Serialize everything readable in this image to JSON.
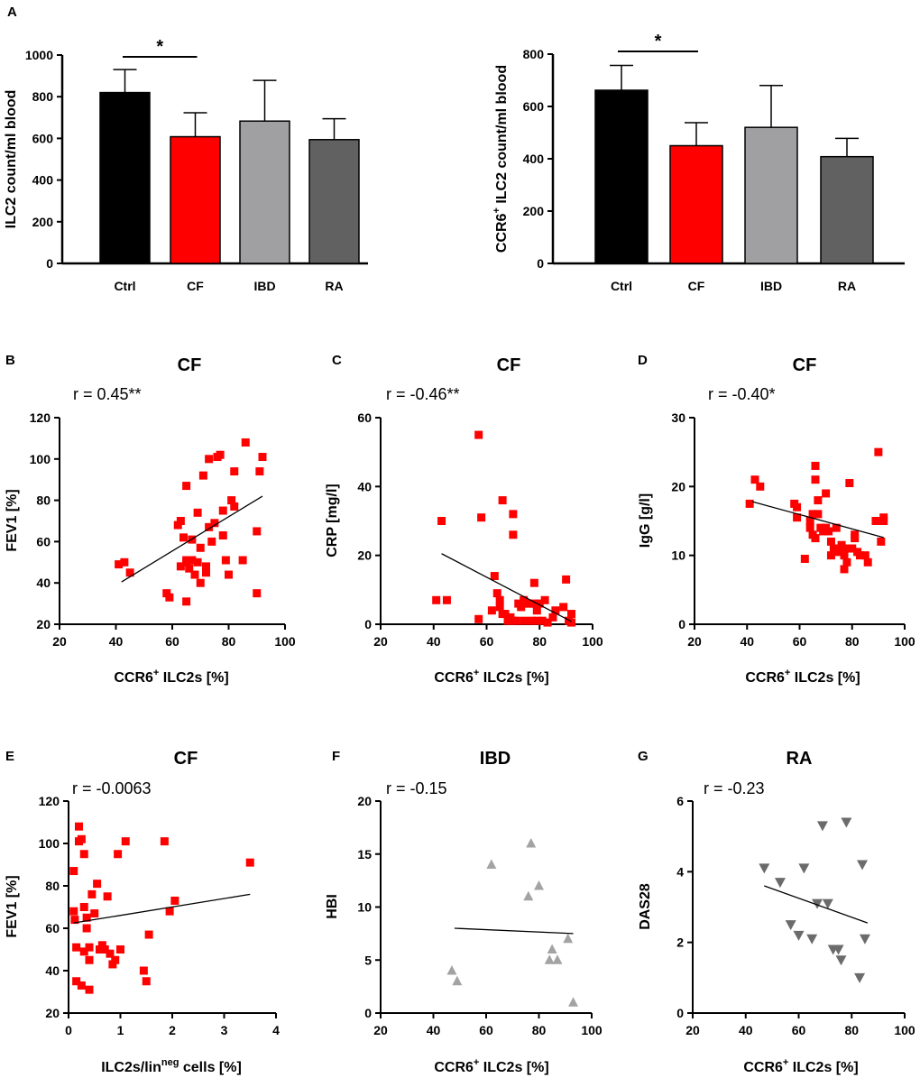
{
  "figure_label": "A",
  "colors": {
    "ctrl": "#000000",
    "cf": "#ff0000",
    "ibd": "#a0a0a3",
    "ra": "#616161",
    "cf_points": "#ff0000",
    "ibd_points": "#a3a3a3",
    "ra_points": "#6b6b6b"
  },
  "chart_data": [
    {
      "id": "A1",
      "type": "bar",
      "categories": [
        "Ctrl",
        "CF",
        "IBD",
        "RA"
      ],
      "values": [
        820,
        608,
        683,
        594
      ],
      "errors": [
        110,
        115,
        195,
        100
      ],
      "ylabel": "ILC2 count/ml blood",
      "ylim": [
        0,
        1000
      ],
      "yticks": [
        "0",
        "200",
        "400",
        "600",
        "800",
        "1000"
      ],
      "significance": {
        "from": "Ctrl",
        "to": "CF",
        "label": "*"
      }
    },
    {
      "id": "A2",
      "type": "bar",
      "categories": [
        "Ctrl",
        "CF",
        "IBD",
        "RA"
      ],
      "values": [
        662,
        450,
        520,
        408
      ],
      "errors": [
        95,
        88,
        160,
        70
      ],
      "ylabel_main": "CCR6",
      "ylabel_sup": "+",
      "ylabel_rest": " ILC2 count/ml blood",
      "ylim": [
        0,
        800
      ],
      "yticks": [
        "0",
        "200",
        "400",
        "600",
        "800"
      ],
      "significance": {
        "from": "Ctrl",
        "to": "CF",
        "label": "*"
      }
    },
    {
      "id": "B",
      "panel": "B",
      "type": "scatter",
      "title": "CF",
      "r_text": "r = 0.45**",
      "xlabel_main": "CCR6",
      "xlabel_sup": "+",
      "xlabel_rest": " ILC2s [%]",
      "ylabel": "FEV1 [%]",
      "xlim": [
        20,
        100
      ],
      "ylim": [
        20,
        120
      ],
      "xticks": [
        "20",
        "40",
        "60",
        "80",
        "100"
      ],
      "yticks": [
        "20",
        "40",
        "60",
        "80",
        "100",
        "120"
      ],
      "marker": "square",
      "fit": [
        [
          42,
          40.5
        ],
        [
          92,
          82
        ]
      ],
      "points": [
        [
          41,
          49
        ],
        [
          43,
          50
        ],
        [
          45,
          45
        ],
        [
          58,
          35
        ],
        [
          59,
          33
        ],
        [
          62,
          68
        ],
        [
          63,
          70
        ],
        [
          63,
          48
        ],
        [
          64,
          62
        ],
        [
          65,
          51
        ],
        [
          65,
          50
        ],
        [
          65,
          87
        ],
        [
          65,
          31
        ],
        [
          66,
          47
        ],
        [
          67,
          61
        ],
        [
          67,
          51
        ],
        [
          68,
          44
        ],
        [
          69,
          50
        ],
        [
          69,
          74
        ],
        [
          70,
          40
        ],
        [
          70,
          57
        ],
        [
          71,
          92
        ],
        [
          72,
          48
        ],
        [
          72,
          45
        ],
        [
          73,
          67
        ],
        [
          73,
          100
        ],
        [
          74,
          60
        ],
        [
          75,
          69
        ],
        [
          76,
          101
        ],
        [
          77,
          102
        ],
        [
          78,
          75
        ],
        [
          78,
          63
        ],
        [
          79,
          51
        ],
        [
          80,
          44
        ],
        [
          81,
          80
        ],
        [
          82,
          77
        ],
        [
          82,
          94
        ],
        [
          85,
          51
        ],
        [
          86,
          108
        ],
        [
          90,
          65
        ],
        [
          90,
          35
        ],
        [
          91,
          94
        ],
        [
          92,
          101
        ]
      ]
    },
    {
      "id": "C",
      "panel": "C",
      "type": "scatter",
      "title": "CF",
      "r_text": "r = -0.46**",
      "xlabel_main": "CCR6",
      "xlabel_sup": "+",
      "xlabel_rest": " ILC2s [%]",
      "ylabel": "CRP [mg/l]",
      "xlim": [
        20,
        100
      ],
      "ylim": [
        0,
        60
      ],
      "xticks": [
        "20",
        "40",
        "60",
        "80",
        "100"
      ],
      "yticks": [
        "0",
        "20",
        "40",
        "60"
      ],
      "marker": "square",
      "fit": [
        [
          43,
          20.5
        ],
        [
          92,
          0.8
        ]
      ],
      "points": [
        [
          41,
          7
        ],
        [
          43,
          30
        ],
        [
          45,
          7
        ],
        [
          57,
          1.5
        ],
        [
          57,
          55
        ],
        [
          58,
          31
        ],
        [
          62,
          4
        ],
        [
          63,
          14
        ],
        [
          64,
          9
        ],
        [
          65,
          7
        ],
        [
          65,
          5
        ],
        [
          66,
          36
        ],
        [
          66,
          3
        ],
        [
          67,
          3
        ],
        [
          68,
          1
        ],
        [
          69,
          2
        ],
        [
          70,
          26
        ],
        [
          70,
          32
        ],
        [
          70,
          1
        ],
        [
          71,
          1
        ],
        [
          72,
          6
        ],
        [
          73,
          5
        ],
        [
          74,
          7
        ],
        [
          74,
          1
        ],
        [
          75,
          6
        ],
        [
          76,
          6
        ],
        [
          77,
          1
        ],
        [
          78,
          12
        ],
        [
          78,
          6
        ],
        [
          79,
          1
        ],
        [
          79,
          4
        ],
        [
          80,
          6
        ],
        [
          81,
          1
        ],
        [
          82,
          7
        ],
        [
          83,
          0.5
        ],
        [
          85,
          2
        ],
        [
          86,
          4
        ],
        [
          89,
          5
        ],
        [
          90,
          13
        ],
        [
          91,
          1
        ],
        [
          92,
          3
        ],
        [
          92,
          0.5
        ]
      ]
    },
    {
      "id": "D",
      "panel": "D",
      "type": "scatter",
      "title": "CF",
      "r_text": "r = -0.40*",
      "xlabel_main": "CCR6",
      "xlabel_sup": "+",
      "xlabel_rest": " ILC2s [%]",
      "ylabel": "IgG [g/l]",
      "xlim": [
        20,
        100
      ],
      "ylim": [
        0,
        30
      ],
      "xticks": [
        "20",
        "40",
        "60",
        "80",
        "100"
      ],
      "yticks": [
        "0",
        "10",
        "20",
        "30"
      ],
      "marker": "square",
      "fit": [
        [
          42,
          17.8
        ],
        [
          92,
          12.6
        ]
      ],
      "points": [
        [
          41,
          17.5
        ],
        [
          43,
          21
        ],
        [
          45,
          20
        ],
        [
          58,
          17.5
        ],
        [
          59,
          15.5
        ],
        [
          59,
          17
        ],
        [
          62,
          9.5
        ],
        [
          64,
          15
        ],
        [
          64,
          14
        ],
        [
          65,
          16
        ],
        [
          65,
          13
        ],
        [
          66,
          23
        ],
        [
          66,
          12.5
        ],
        [
          66,
          21
        ],
        [
          67,
          18
        ],
        [
          67,
          16
        ],
        [
          68,
          14
        ],
        [
          69,
          13.5
        ],
        [
          70,
          19
        ],
        [
          70,
          14
        ],
        [
          71,
          13.5
        ],
        [
          72,
          12
        ],
        [
          72,
          10
        ],
        [
          73,
          11
        ],
        [
          74,
          14
        ],
        [
          75,
          10.5
        ],
        [
          76,
          11.5
        ],
        [
          77,
          10
        ],
        [
          77,
          8
        ],
        [
          78,
          11
        ],
        [
          78,
          9
        ],
        [
          79,
          20.5
        ],
        [
          80,
          11
        ],
        [
          81,
          12.5
        ],
        [
          81,
          13
        ],
        [
          82,
          10.5
        ],
        [
          83,
          10
        ],
        [
          85,
          10
        ],
        [
          86,
          9
        ],
        [
          89,
          15
        ],
        [
          90,
          25
        ],
        [
          91,
          12
        ],
        [
          92,
          15.5
        ],
        [
          92,
          15
        ]
      ]
    },
    {
      "id": "E",
      "panel": "E",
      "type": "scatter",
      "title": "CF",
      "r_text": "r = -0.0063",
      "xlabel_main": "ILC2s/lin",
      "xlabel_sup": "neg",
      "xlabel_rest": " cells [%]",
      "ylabel": "FEV1 [%]",
      "xlim": [
        0,
        4
      ],
      "ylim": [
        20,
        120
      ],
      "xticks": [
        "0",
        "1",
        "2",
        "3",
        "4"
      ],
      "yticks": [
        "20",
        "40",
        "60",
        "80",
        "100",
        "120"
      ],
      "marker": "square",
      "fit": [
        [
          0.1,
          62.5
        ],
        [
          3.5,
          76
        ]
      ],
      "points": [
        [
          0.1,
          87
        ],
        [
          0.1,
          68
        ],
        [
          0.12,
          64
        ],
        [
          0.15,
          51
        ],
        [
          0.15,
          35
        ],
        [
          0.2,
          108
        ],
        [
          0.2,
          101
        ],
        [
          0.25,
          102
        ],
        [
          0.25,
          33
        ],
        [
          0.3,
          70
        ],
        [
          0.3,
          95
        ],
        [
          0.3,
          49
        ],
        [
          0.35,
          65
        ],
        [
          0.35,
          60
        ],
        [
          0.4,
          45
        ],
        [
          0.4,
          51
        ],
        [
          0.4,
          31
        ],
        [
          0.45,
          76
        ],
        [
          0.5,
          67
        ],
        [
          0.55,
          81
        ],
        [
          0.6,
          50
        ],
        [
          0.65,
          52
        ],
        [
          0.7,
          50
        ],
        [
          0.75,
          75
        ],
        [
          0.8,
          48
        ],
        [
          0.85,
          43
        ],
        [
          0.9,
          45
        ],
        [
          0.95,
          95
        ],
        [
          1.0,
          50
        ],
        [
          1.1,
          101
        ],
        [
          1.45,
          40
        ],
        [
          1.5,
          35
        ],
        [
          1.55,
          57
        ],
        [
          1.85,
          101
        ],
        [
          1.95,
          68
        ],
        [
          2.05,
          73
        ],
        [
          3.5,
          91
        ]
      ]
    },
    {
      "id": "F",
      "panel": "F",
      "type": "scatter",
      "title": "IBD",
      "r_text": "r = -0.15",
      "xlabel_main": "CCR6",
      "xlabel_sup": "+",
      "xlabel_rest": " ILC2s [%]",
      "ylabel": "HBI",
      "xlim": [
        20,
        100
      ],
      "ylim": [
        0,
        20
      ],
      "xticks": [
        "20",
        "40",
        "60",
        "80",
        "100"
      ],
      "yticks": [
        "0",
        "5",
        "10",
        "15",
        "20"
      ],
      "marker": "triangle-up",
      "fit": [
        [
          48,
          8
        ],
        [
          93,
          7.5
        ]
      ],
      "points": [
        [
          47,
          4
        ],
        [
          49,
          3
        ],
        [
          62,
          14
        ],
        [
          76,
          11
        ],
        [
          77,
          16
        ],
        [
          80,
          12
        ],
        [
          84,
          5
        ],
        [
          85,
          6
        ],
        [
          87,
          5
        ],
        [
          91,
          7
        ],
        [
          93,
          1
        ]
      ]
    },
    {
      "id": "G",
      "panel": "G",
      "type": "scatter",
      "title": "RA",
      "r_text": "r = -0.23",
      "xlabel_main": "CCR6",
      "xlabel_sup": "+",
      "xlabel_rest": " ILC2s [%]",
      "ylabel": "DAS28",
      "xlim": [
        20,
        100
      ],
      "ylim": [
        0,
        6
      ],
      "xticks": [
        "20",
        "40",
        "60",
        "80",
        "100"
      ],
      "yticks": [
        "0",
        "2",
        "4",
        "6"
      ],
      "marker": "triangle-down",
      "fit": [
        [
          47,
          3.6
        ],
        [
          86,
          2.55
        ]
      ],
      "points": [
        [
          47,
          4.1
        ],
        [
          53,
          3.7
        ],
        [
          57,
          2.5
        ],
        [
          60,
          2.2
        ],
        [
          62,
          4.1
        ],
        [
          65,
          2.1
        ],
        [
          67,
          3.1
        ],
        [
          69,
          5.3
        ],
        [
          71,
          3.1
        ],
        [
          73,
          1.8
        ],
        [
          75,
          1.8
        ],
        [
          76,
          1.5
        ],
        [
          78,
          5.4
        ],
        [
          83,
          1
        ],
        [
          84,
          4.2
        ],
        [
          85,
          2.1
        ]
      ]
    }
  ]
}
